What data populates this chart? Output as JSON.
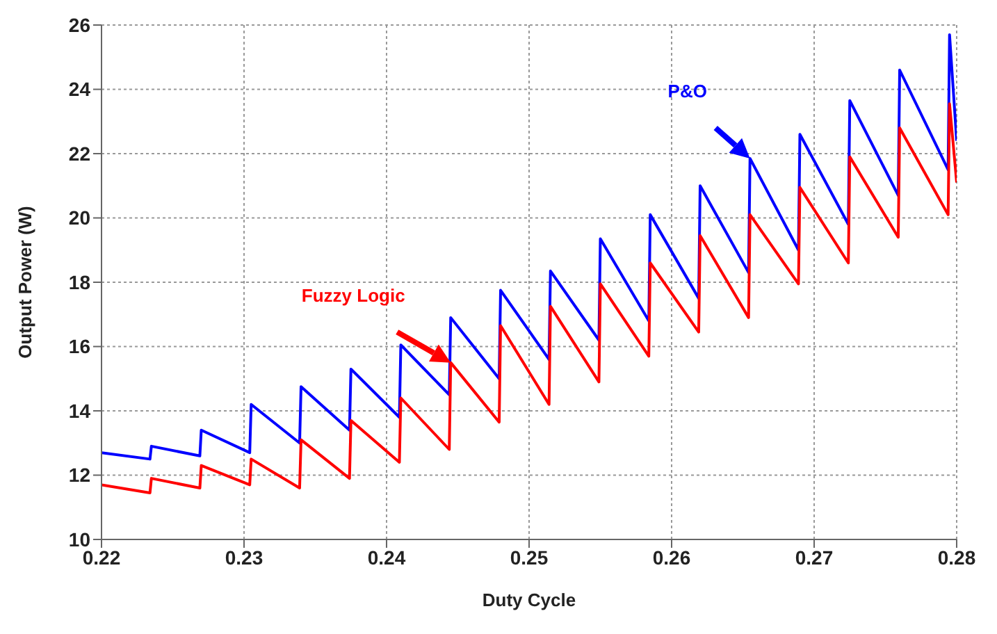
{
  "chart_data": {
    "type": "line",
    "xlabel": "Duty Cycle",
    "ylabel": "Output Power (W)",
    "xlim": [
      0.22,
      0.28
    ],
    "xticks": [
      0.22,
      0.23,
      0.24,
      0.25,
      0.26,
      0.27,
      0.28
    ],
    "ylim": [
      10,
      26
    ],
    "yticks": [
      10,
      12,
      14,
      16,
      18,
      20,
      22,
      24,
      26
    ],
    "grid": true,
    "line_style": "solid",
    "marker": "none",
    "series": [
      {
        "name": "P&O",
        "color": "#0000ff",
        "x": [
          0.22,
          0.2234,
          0.2235,
          0.2269,
          0.227,
          0.2304,
          0.2305,
          0.2339,
          0.234,
          0.2374,
          0.2375,
          0.2409,
          0.241,
          0.2444,
          0.2445,
          0.2479,
          0.248,
          0.2514,
          0.2515,
          0.2549,
          0.255,
          0.2584,
          0.2585,
          0.2619,
          0.262,
          0.2654,
          0.2655,
          0.2689,
          0.269,
          0.2724,
          0.2725,
          0.2759,
          0.276,
          0.2794,
          0.2795,
          0.28
        ],
        "values": [
          12.7,
          12.5,
          12.9,
          12.6,
          13.4,
          12.7,
          14.2,
          13.0,
          14.75,
          13.4,
          15.3,
          13.8,
          16.05,
          14.5,
          16.9,
          15.0,
          17.75,
          15.6,
          18.35,
          16.2,
          19.35,
          16.8,
          20.1,
          17.5,
          21.0,
          18.3,
          21.85,
          19.0,
          22.6,
          19.8,
          23.65,
          20.7,
          24.6,
          21.5,
          25.7,
          22.4
        ]
      },
      {
        "name": "Fuzzy Logic",
        "color": "#ff0000",
        "x": [
          0.22,
          0.2234,
          0.2235,
          0.2269,
          0.227,
          0.2304,
          0.2305,
          0.2339,
          0.234,
          0.2374,
          0.2375,
          0.2409,
          0.241,
          0.2444,
          0.2445,
          0.2479,
          0.248,
          0.2514,
          0.2515,
          0.2549,
          0.255,
          0.2584,
          0.2585,
          0.2619,
          0.262,
          0.2654,
          0.2655,
          0.2689,
          0.269,
          0.2724,
          0.2725,
          0.2759,
          0.276,
          0.2794,
          0.2795,
          0.28
        ],
        "values": [
          11.7,
          11.45,
          11.9,
          11.6,
          12.3,
          11.7,
          12.5,
          11.6,
          13.1,
          11.9,
          13.7,
          12.4,
          14.4,
          12.8,
          15.5,
          13.65,
          16.65,
          14.2,
          17.25,
          14.9,
          17.95,
          15.7,
          18.6,
          16.45,
          19.45,
          16.9,
          20.1,
          17.95,
          20.95,
          18.6,
          21.9,
          19.4,
          22.8,
          20.1,
          23.55,
          21.1
        ]
      }
    ],
    "legend": false
  }
}
